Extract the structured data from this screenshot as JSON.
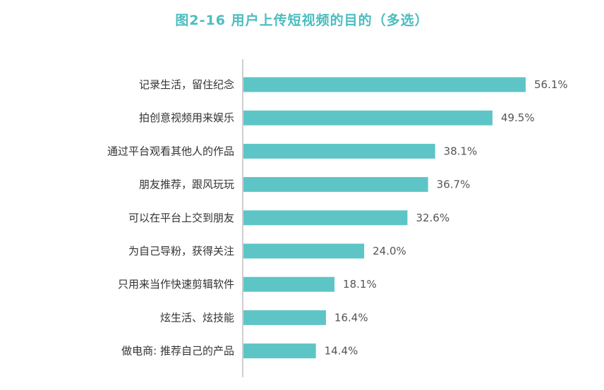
{
  "chart_data": {
    "type": "bar",
    "orientation": "horizontal",
    "title": "图2-16 用户上传短视频的目的（多选）",
    "categories": [
      "记录生活，留住纪念",
      "拍创意视频用来娱乐",
      "通过平台观看其他人的作品",
      "朋友推荐，跟风玩玩",
      "可以在平台上交到朋友",
      "为自己导粉，获得关注",
      "只用来当作快速剪辑软件",
      "炫生活、炫技能",
      "做电商: 推荐自己的产品"
    ],
    "values": [
      56.1,
      49.5,
      38.1,
      36.7,
      32.6,
      24.0,
      18.1,
      16.4,
      14.4
    ],
    "value_labels": [
      "56.1%",
      "49.5%",
      "38.1%",
      "36.7%",
      "32.6%",
      "24.0%",
      "18.1%",
      "16.4%",
      "14.4%"
    ],
    "xlim": [
      0,
      60
    ],
    "grid": false,
    "legend": "none",
    "colors": {
      "bar": "#5ec5c6",
      "axis": "#bfbfbf",
      "title": "#4bbdbf"
    }
  }
}
